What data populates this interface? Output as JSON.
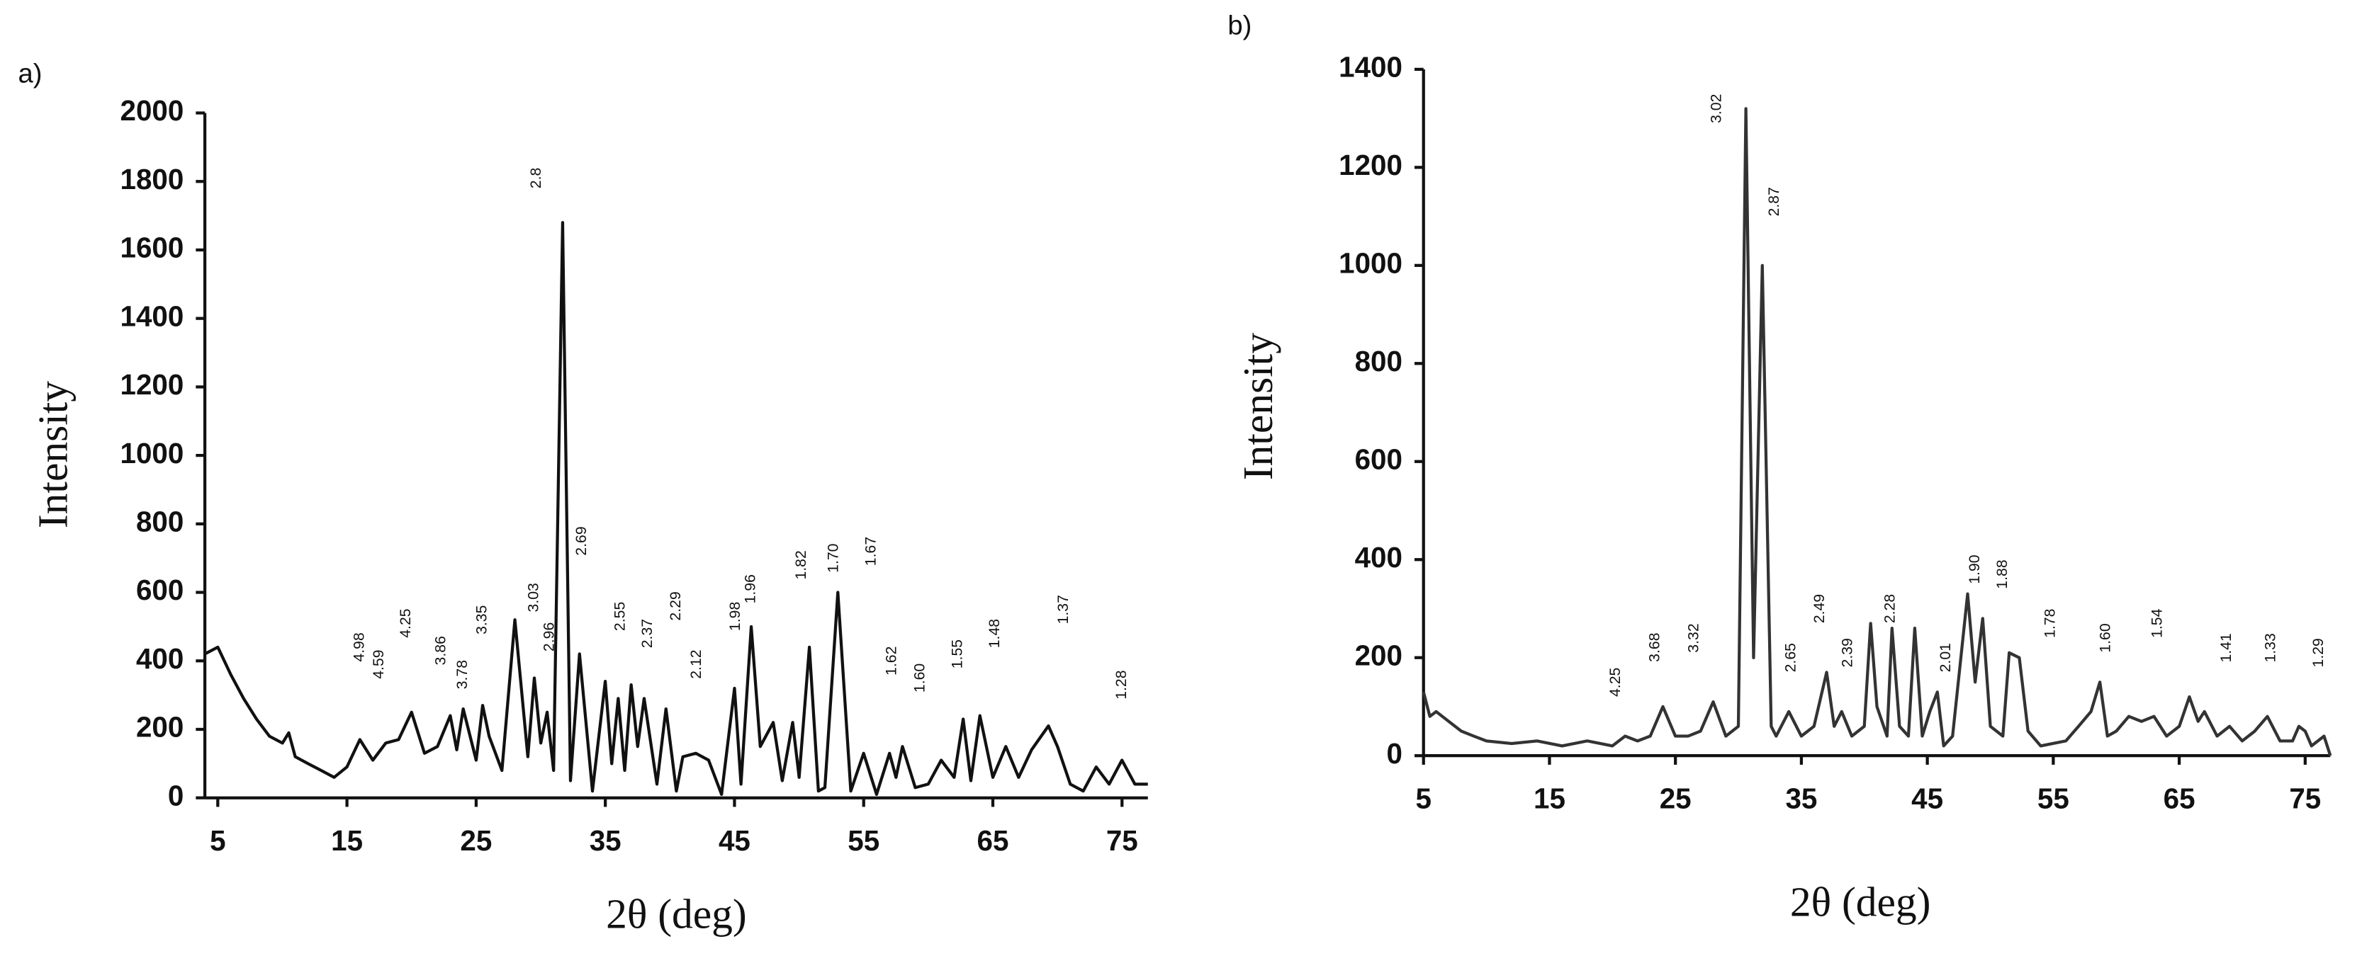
{
  "chart_data": [
    {
      "type": "line",
      "panel_label": "a)",
      "ylabel": "Intensity",
      "xlabel": "2θ (deg)",
      "color": "#111111",
      "xlim": [
        4,
        77
      ],
      "xticks": [
        5,
        15,
        25,
        35,
        45,
        55,
        65,
        75
      ],
      "ylim": [
        0,
        2000
      ],
      "yticks": [
        0,
        200,
        400,
        600,
        800,
        1000,
        1200,
        1400,
        1600,
        1800,
        2000
      ],
      "x": [
        4,
        5,
        6,
        7,
        8,
        9,
        10,
        10.5,
        11,
        12,
        13,
        14,
        15,
        16,
        17,
        18,
        19,
        20,
        21,
        22,
        23,
        23.5,
        24,
        25,
        25.5,
        26,
        27,
        28,
        29,
        29.5,
        30,
        30.5,
        31,
        31.7,
        32.3,
        33,
        34,
        35,
        35.5,
        36,
        36.5,
        37,
        37.5,
        38,
        39,
        39.7,
        40.5,
        41,
        42,
        43,
        44,
        45,
        45.5,
        46.3,
        47,
        48,
        48.7,
        49.5,
        50,
        50.8,
        51.5,
        52,
        53,
        54,
        55,
        56,
        57,
        57.5,
        58,
        59,
        60,
        61,
        62,
        62.7,
        63.3,
        64,
        65,
        66,
        67,
        68,
        69.3,
        70,
        71,
        72,
        73,
        74,
        75,
        76,
        77
      ],
      "values": [
        420,
        440,
        360,
        290,
        230,
        180,
        160,
        190,
        120,
        100,
        80,
        60,
        90,
        170,
        110,
        160,
        170,
        250,
        130,
        150,
        240,
        140,
        260,
        110,
        270,
        180,
        80,
        520,
        120,
        350,
        160,
        250,
        80,
        1680,
        50,
        420,
        20,
        340,
        100,
        290,
        80,
        330,
        150,
        290,
        40,
        260,
        20,
        120,
        130,
        110,
        10,
        320,
        40,
        500,
        150,
        220,
        50,
        220,
        60,
        440,
        20,
        30,
        600,
        20,
        130,
        10,
        130,
        60,
        150,
        30,
        40,
        110,
        60,
        230,
        50,
        240,
        60,
        150,
        60,
        140,
        210,
        150,
        40,
        20,
        90,
        40,
        110,
        40,
        40
      ],
      "annotations": [
        {
          "label": "4.98",
          "x": 16,
          "y": 440
        },
        {
          "label": "4.59",
          "x": 17.5,
          "y": 390
        },
        {
          "label": "4.25",
          "x": 19.6,
          "y": 510
        },
        {
          "label": "3.86",
          "x": 22.3,
          "y": 430
        },
        {
          "label": "3.78",
          "x": 24,
          "y": 360
        },
        {
          "label": "3.35",
          "x": 25.5,
          "y": 520
        },
        {
          "label": "3.03",
          "x": 29.5,
          "y": 585
        },
        {
          "label": "2.96",
          "x": 30.7,
          "y": 470
        },
        {
          "label": "2.8",
          "x": 29.7,
          "y": 1810
        },
        {
          "label": "2.69",
          "x": 33.2,
          "y": 750
        },
        {
          "label": "2.55",
          "x": 36.2,
          "y": 530
        },
        {
          "label": "2.37",
          "x": 38.3,
          "y": 480
        },
        {
          "label": "2.29",
          "x": 40.5,
          "y": 560
        },
        {
          "label": "2.12",
          "x": 42.1,
          "y": 390
        },
        {
          "label": "1.98",
          "x": 45.1,
          "y": 530
        },
        {
          "label": "1.96",
          "x": 46.3,
          "y": 610
        },
        {
          "label": "1.82",
          "x": 50.2,
          "y": 680
        },
        {
          "label": "1.70",
          "x": 52.7,
          "y": 700
        },
        {
          "label": "1.67",
          "x": 55.6,
          "y": 720
        },
        {
          "label": "1.62",
          "x": 57.2,
          "y": 400
        },
        {
          "label": "1.60",
          "x": 59.4,
          "y": 350
        },
        {
          "label": "1.55",
          "x": 62.3,
          "y": 420
        },
        {
          "label": "1.48",
          "x": 65.2,
          "y": 480
        },
        {
          "label": "1.37",
          "x": 70.5,
          "y": 550
        },
        {
          "label": "1.28",
          "x": 75,
          "y": 330
        }
      ]
    },
    {
      "type": "line",
      "panel_label": "b)",
      "ylabel": "Intensity",
      "xlabel": "2θ (deg)",
      "color": "#333333",
      "xlim": [
        5,
        77
      ],
      "xticks": [
        5,
        15,
        25,
        35,
        45,
        55,
        65,
        75
      ],
      "ylim": [
        0,
        1400
      ],
      "yticks": [
        0,
        200,
        400,
        600,
        800,
        1000,
        1200,
        1400
      ],
      "x": [
        5,
        5.5,
        6,
        7,
        8,
        9,
        10,
        12,
        14,
        16,
        18,
        20,
        21,
        22,
        23,
        24,
        25,
        26,
        27,
        28,
        29,
        30,
        30.6,
        31.2,
        31.9,
        32.6,
        33,
        34,
        35,
        36,
        37,
        37.6,
        38.2,
        39,
        40,
        40.5,
        41,
        41.8,
        42.2,
        42.8,
        43.5,
        44,
        44.6,
        45.2,
        45.8,
        46.3,
        47,
        48.2,
        48.8,
        49.4,
        50,
        51,
        51.5,
        52.3,
        53,
        54,
        56,
        57,
        58,
        58.7,
        59.3,
        60,
        61,
        62,
        63,
        64,
        65,
        65.8,
        66.5,
        67,
        68,
        69,
        70,
        71,
        72,
        73,
        74,
        74.5,
        75,
        75.5,
        76.5,
        77
      ],
      "values": [
        130,
        80,
        90,
        70,
        50,
        40,
        30,
        25,
        30,
        20,
        30,
        20,
        40,
        30,
        40,
        100,
        40,
        40,
        50,
        110,
        40,
        60,
        1320,
        200,
        1000,
        60,
        40,
        90,
        40,
        60,
        170,
        60,
        90,
        40,
        60,
        270,
        100,
        40,
        260,
        60,
        40,
        260,
        40,
        90,
        130,
        20,
        40,
        330,
        150,
        280,
        60,
        40,
        210,
        200,
        50,
        20,
        30,
        60,
        90,
        150,
        40,
        50,
        80,
        70,
        80,
        40,
        60,
        120,
        70,
        90,
        40,
        60,
        30,
        50,
        80,
        30,
        30,
        60,
        50,
        20,
        40,
        0
      ],
      "annotations": [
        {
          "label": "3.02",
          "x": 28.3,
          "y": 1320
        },
        {
          "label": "2.87",
          "x": 32.9,
          "y": 1130
        },
        {
          "label": "4.25",
          "x": 20.3,
          "y": 150
        },
        {
          "label": "3.68",
          "x": 23.4,
          "y": 221
        },
        {
          "label": "3.32",
          "x": 26.5,
          "y": 240
        },
        {
          "label": "2.65",
          "x": 34.2,
          "y": 200
        },
        {
          "label": "2.49",
          "x": 36.5,
          "y": 300
        },
        {
          "label": "2.39",
          "x": 38.7,
          "y": 210
        },
        {
          "label": "2.28",
          "x": 42.1,
          "y": 300
        },
        {
          "label": "2.01",
          "x": 46.5,
          "y": 200
        },
        {
          "label": "1.90",
          "x": 48.8,
          "y": 380
        },
        {
          "label": "1.88",
          "x": 51,
          "y": 370
        },
        {
          "label": "1.78",
          "x": 54.8,
          "y": 270
        },
        {
          "label": "1.60",
          "x": 59.2,
          "y": 240
        },
        {
          "label": "1.54",
          "x": 63.3,
          "y": 270
        },
        {
          "label": "1.41",
          "x": 68.8,
          "y": 220
        },
        {
          "label": "1.33",
          "x": 72.3,
          "y": 220
        },
        {
          "label": "1.29",
          "x": 76.1,
          "y": 210
        }
      ]
    }
  ]
}
